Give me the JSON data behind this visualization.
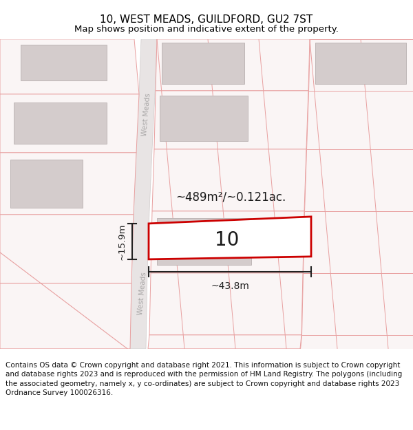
{
  "title": "10, WEST MEADS, GUILDFORD, GU2 7ST",
  "subtitle": "Map shows position and indicative extent of the property.",
  "footer": "Contains OS data © Crown copyright and database right 2021. This information is subject to Crown copyright and database rights 2023 and is reproduced with the permission of HM Land Registry. The polygons (including the associated geometry, namely x, y co-ordinates) are subject to Crown copyright and database rights 2023 Ordnance Survey 100026316.",
  "area_text": "~489m²/~0.121ac.",
  "width_label": "~43.8m",
  "height_label": "~15.9m",
  "number_label": "10",
  "street_label": "West Meads",
  "title_fontsize": 11,
  "subtitle_fontsize": 9.5,
  "footer_fontsize": 7.5,
  "plot_edge": "#e8a0a0",
  "plot_fill": "#faf5f5",
  "building_fill": "#d4cccc",
  "building_edge": "#b8b0b0",
  "road_fill": "#e8e4e4",
  "road_edge": "#d0cccc",
  "highlight_red": "#cc0000",
  "highlight_fill": "#ffffff",
  "measure_color": "#222222",
  "street_color": "#aaa8a8"
}
